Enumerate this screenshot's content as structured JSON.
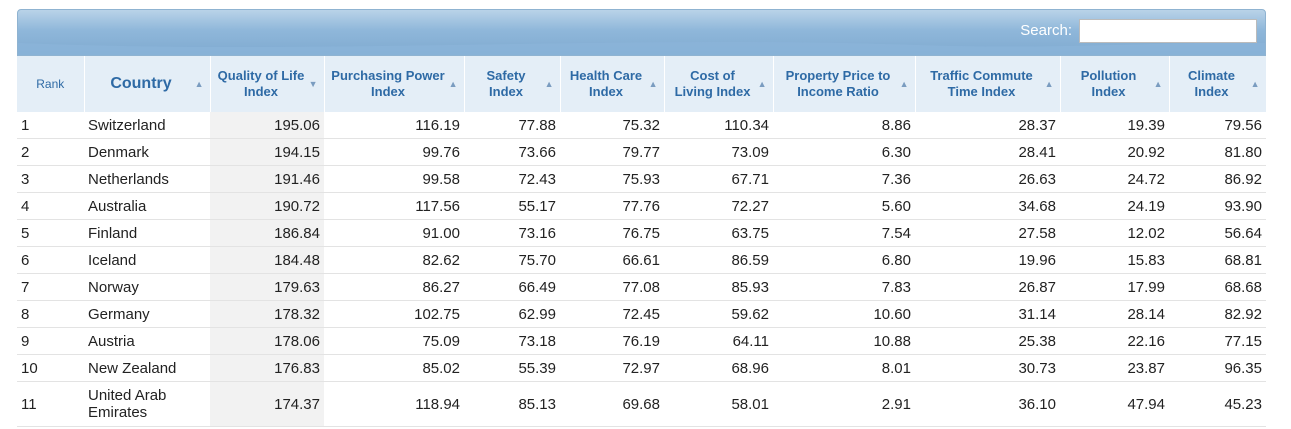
{
  "search": {
    "label": "Search:",
    "value": ""
  },
  "headers": {
    "rank": "Rank",
    "country": "Country",
    "quality": "Quality of Life Index",
    "purchasing": "Purchasing Power Index",
    "safety": "Safety Index",
    "health": "Health Care Index",
    "cost": "Cost of Living Index",
    "property": "Property Price to Income Ratio",
    "traffic": "Traffic Commute Time Index",
    "pollution": "Pollution Index",
    "climate": "Climate Index"
  },
  "sort_icons": {
    "country": "sort-asc-icon",
    "quality": "sort-desc-icon",
    "others": "sort-asc-icon"
  },
  "rows": [
    [
      "1",
      "Switzerland",
      "195.06",
      "116.19",
      "77.88",
      "75.32",
      "110.34",
      "8.86",
      "28.37",
      "19.39",
      "79.56"
    ],
    [
      "2",
      "Denmark",
      "194.15",
      "99.76",
      "73.66",
      "79.77",
      "73.09",
      "6.30",
      "28.41",
      "20.92",
      "81.80"
    ],
    [
      "3",
      "Netherlands",
      "191.46",
      "99.58",
      "72.43",
      "75.93",
      "67.71",
      "7.36",
      "26.63",
      "24.72",
      "86.92"
    ],
    [
      "4",
      "Australia",
      "190.72",
      "117.56",
      "55.17",
      "77.76",
      "72.27",
      "5.60",
      "34.68",
      "24.19",
      "93.90"
    ],
    [
      "5",
      "Finland",
      "186.84",
      "91.00",
      "73.16",
      "76.75",
      "63.75",
      "7.54",
      "27.58",
      "12.02",
      "56.64"
    ],
    [
      "6",
      "Iceland",
      "184.48",
      "82.62",
      "75.70",
      "66.61",
      "86.59",
      "6.80",
      "19.96",
      "15.83",
      "68.81"
    ],
    [
      "7",
      "Norway",
      "179.63",
      "86.27",
      "66.49",
      "77.08",
      "85.93",
      "7.83",
      "26.87",
      "17.99",
      "68.68"
    ],
    [
      "8",
      "Germany",
      "178.32",
      "102.75",
      "62.99",
      "72.45",
      "59.62",
      "10.60",
      "31.14",
      "28.14",
      "82.92"
    ],
    [
      "9",
      "Austria",
      "178.06",
      "75.09",
      "73.18",
      "76.19",
      "64.11",
      "10.88",
      "25.38",
      "22.16",
      "77.15"
    ],
    [
      "10",
      "New Zealand",
      "176.83",
      "85.02",
      "55.39",
      "72.97",
      "68.96",
      "8.01",
      "30.73",
      "23.87",
      "96.35"
    ],
    [
      "11",
      "United Arab Emirates",
      "174.37",
      "118.94",
      "85.13",
      "69.68",
      "58.01",
      "2.91",
      "36.10",
      "47.94",
      "45.23"
    ]
  ]
}
